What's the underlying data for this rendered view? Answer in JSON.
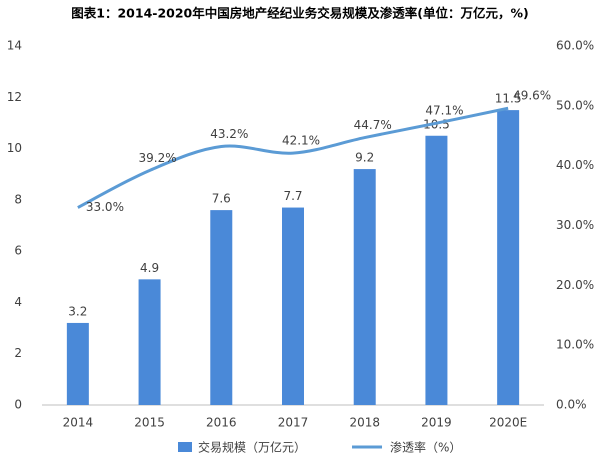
{
  "chart_data": {
    "type": "bar",
    "title": "图表1：2014-2020年中国房地产经纪业务交易规模及渗透率(单位：万亿元，%)",
    "categories": [
      "2014",
      "2015",
      "2016",
      "2017",
      "2018",
      "2019",
      "2020E"
    ],
    "series": [
      {
        "name": "交易规模（万亿元）",
        "type": "bar",
        "color": "#4a89d8",
        "values": [
          3.2,
          4.9,
          7.6,
          7.7,
          9.2,
          10.5,
          11.5
        ]
      },
      {
        "name": "渗透率（%）",
        "type": "line",
        "axis": "y2",
        "color": "#5b9bd5",
        "values": [
          33.0,
          39.2,
          43.2,
          42.1,
          44.7,
          47.1,
          49.6
        ],
        "value_labels": [
          "33.0%",
          "39.2%",
          "43.2%",
          "42.1%",
          "44.7%",
          "47.1%",
          "49.6%"
        ]
      }
    ],
    "ylim": [
      0,
      14
    ],
    "yticks": [
      0,
      2,
      4,
      6,
      8,
      10,
      12,
      14
    ],
    "y2lim": [
      0,
      60
    ],
    "y2ticks": [
      {
        "value": 0,
        "label": "0.0%"
      },
      {
        "value": 10,
        "label": "10.0%"
      },
      {
        "value": 20,
        "label": "20.0%"
      },
      {
        "value": 30,
        "label": "30.0%"
      },
      {
        "value": 40,
        "label": "40.0%"
      },
      {
        "value": 50,
        "label": "50.0%"
      },
      {
        "value": 60,
        "label": "60.0%"
      }
    ],
    "grid": false
  }
}
